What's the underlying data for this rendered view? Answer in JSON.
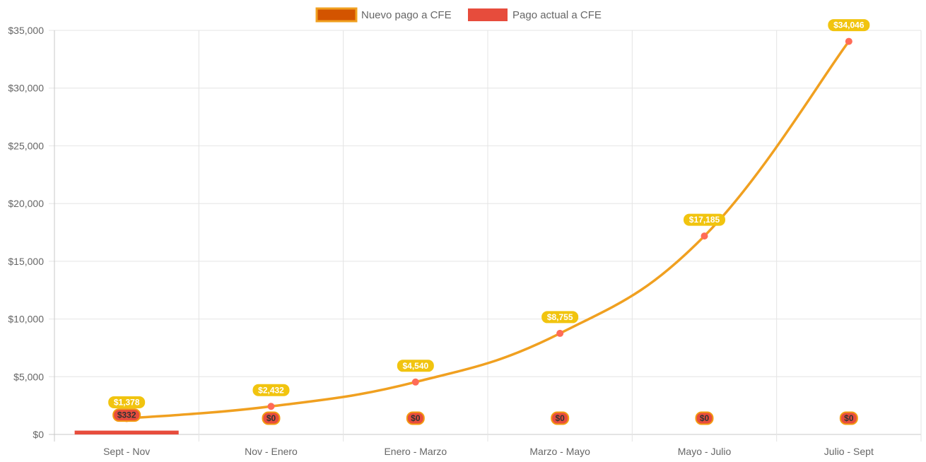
{
  "chart_data": {
    "type": "line",
    "categories": [
      "Sept - Nov",
      "Nov - Enero",
      "Enero - Marzo",
      "Marzo - Mayo",
      "Mayo - Julio",
      "Julio - Sept"
    ],
    "series": [
      {
        "name": "Nuevo pago a CFE",
        "type": "line",
        "color": "#f0a020",
        "legend_fill": "#d35400",
        "point_color": "#ff6b57",
        "label_bg": "#f1c40f",
        "label_color": "#ffffff",
        "values": [
          1378,
          2432,
          4540,
          8755,
          17185,
          34046
        ],
        "labels": [
          "$1,378",
          "$2,432",
          "$4,540",
          "$8,755",
          "$17,185",
          "$34,046"
        ]
      },
      {
        "name": "Pago actual a CFE",
        "type": "bar",
        "color": "#e74c3c",
        "label_border": "#f39c12",
        "label_color": "#333333",
        "values": [
          332,
          0,
          0,
          0,
          0,
          0
        ],
        "labels": [
          "$332",
          "$0",
          "$0",
          "$0",
          "$0",
          "$0"
        ]
      }
    ],
    "y_ticks": [
      "$0",
      "$5,000",
      "$10,000",
      "$15,000",
      "$20,000",
      "$25,000",
      "$30,000",
      "$35,000"
    ],
    "ylim": [
      0,
      35000
    ],
    "grid": true,
    "legend_position": "top"
  }
}
